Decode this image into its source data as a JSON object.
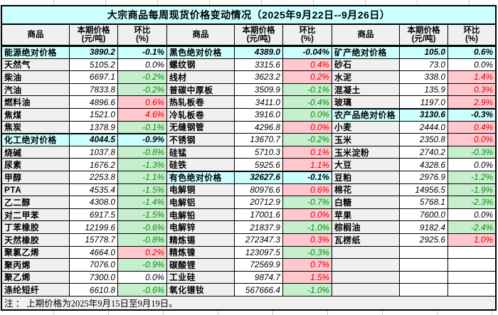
{
  "title": "大宗商品每周现货价格变动情况（2025年9月22日--9月26日）",
  "header": {
    "commodity": "商品",
    "price_l1": "本期价格",
    "price_l2": "(元/吨)",
    "pct_l1": "环比",
    "pct_l2": "(%)"
  },
  "footnote": "注 ： 上期价格为2025年9月15日至9月19日。",
  "colors": {
    "section_bg": "#ccffff",
    "title_bg": "#ccffff",
    "up_bg": "#ffc7ce",
    "up_text": "#dd0000",
    "down_bg": "#c6efce",
    "down_text": "#0b8a0b",
    "name_bg": "#f0f0f0",
    "border": "#000000"
  },
  "groups": [
    {
      "rows": [
        {
          "n": "能源绝对价格",
          "p": "3890.2",
          "c": "-0.1%",
          "s": "sec"
        },
        {
          "n": "天然气",
          "p": "5105.2",
          "c": "0.0%",
          "s": "flat"
        },
        {
          "n": "柴油",
          "p": "6697.1",
          "c": "-0.2%",
          "s": "down"
        },
        {
          "n": "汽油",
          "p": "7833.8",
          "c": "-0.2%",
          "s": "down"
        },
        {
          "n": "燃料油",
          "p": "4896.6",
          "c": "0.6%",
          "s": "up"
        },
        {
          "n": "焦煤",
          "p": "1521.0",
          "c": "4.6%",
          "s": "up"
        },
        {
          "n": "焦炭",
          "p": "1378.9",
          "c": "-0.1%",
          "s": "down"
        },
        {
          "n": "化工绝对价格",
          "p": "4044.5",
          "c": "-0.9%",
          "s": "sec"
        },
        {
          "n": "烧碱",
          "p": "1037.8",
          "c": "-0.8%",
          "s": "down"
        },
        {
          "n": "尿素",
          "p": "1676.2",
          "c": "-1.3%",
          "s": "down"
        },
        {
          "n": "甲醇",
          "p": "2253.8",
          "c": "-1.1%",
          "s": "down"
        },
        {
          "n": "PTA",
          "p": "4535.4",
          "c": "-1.5%",
          "s": "down"
        },
        {
          "n": "乙二醇",
          "p": "4308.0",
          "c": "-1.4%",
          "s": "down"
        },
        {
          "n": "对二甲苯",
          "p": "6917.5",
          "c": "-1.5%",
          "s": "down"
        },
        {
          "n": "丁苯橡胶",
          "p": "12199.6",
          "c": "-0.6%",
          "s": "down"
        },
        {
          "n": "天然橡胶",
          "p": "15778.7",
          "c": "-0.8%",
          "s": "down"
        },
        {
          "n": "聚氯乙烯",
          "p": "4664.0",
          "c": "0.2%",
          "s": "up"
        },
        {
          "n": "聚丙烯",
          "p": "7076.0",
          "c": "-0.9%",
          "s": "down"
        },
        {
          "n": "聚乙烯",
          "p": "7300.0",
          "c": "0.0%",
          "s": "flat"
        },
        {
          "n": "涤纶短纤",
          "p": "6610.8",
          "c": "-0.6%",
          "s": "down"
        }
      ]
    },
    {
      "rows": [
        {
          "n": "黑色绝对价格",
          "p": "4389.0",
          "c": "-0.04%",
          "s": "sec"
        },
        {
          "n": "螺纹钢",
          "p": "3315.6",
          "c": "0.4%",
          "s": "up"
        },
        {
          "n": "线材",
          "p": "3623.2",
          "c": "0.2%",
          "s": "up"
        },
        {
          "n": "普碳中厚板",
          "p": "3509.9",
          "c": "-0.1%",
          "s": "down"
        },
        {
          "n": "热轧板卷",
          "p": "3411.0",
          "c": "-0.4%",
          "s": "down"
        },
        {
          "n": "冷轧板卷",
          "p": "3916.0",
          "c": "0.0%",
          "s": "down"
        },
        {
          "n": "无缝钢管",
          "p": "4296.8",
          "c": "0.0%",
          "s": "up"
        },
        {
          "n": "不锈钢",
          "p": "13670.7",
          "c": "-0.2%",
          "s": "down"
        },
        {
          "n": "硅锰",
          "p": "5710.3",
          "c": "0.1%",
          "s": "up"
        },
        {
          "n": "硅铁",
          "p": "5925.6",
          "c": "1.1%",
          "s": "up"
        },
        {
          "n": "有色绝对价格",
          "p": "32627.6",
          "c": "-0.1%",
          "s": "sec"
        },
        {
          "n": "电解铜",
          "p": "80976.6",
          "c": "0.6%",
          "s": "up"
        },
        {
          "n": "电解铝",
          "p": "20712.9",
          "c": "-0.7%",
          "s": "down"
        },
        {
          "n": "电解铅",
          "p": "17001.6",
          "c": "0.0%",
          "s": "up"
        },
        {
          "n": "电解锌",
          "p": "21837.9",
          "c": "-1.0%",
          "s": "down"
        },
        {
          "n": "精炼锡",
          "p": "272347.3",
          "c": "0.3%",
          "s": "up"
        },
        {
          "n": "精炼镍",
          "p": "123097.5",
          "c": "-0.3%",
          "s": "down"
        },
        {
          "n": "碳酸锂",
          "p": "72569.9",
          "c": "0.7%",
          "s": "up"
        },
        {
          "n": "工业硅",
          "p": "9874.7",
          "c": "1.5%",
          "s": "up"
        },
        {
          "n": "氧化镨钕",
          "p": "567666.4",
          "c": "-1.0%",
          "s": "down"
        }
      ]
    },
    {
      "rows": [
        {
          "n": "矿产绝对价格",
          "p": "105.0",
          "c": "0.6%",
          "s": "sec"
        },
        {
          "n": "砂石",
          "p": "73.0",
          "c": "0.0%",
          "s": "flat"
        },
        {
          "n": "水泥",
          "p": "338.0",
          "c": "1.4%",
          "s": "up"
        },
        {
          "n": "混凝土",
          "p": "135.9",
          "c": "0.3%",
          "s": "up"
        },
        {
          "n": "玻璃",
          "p": "1197.0",
          "c": "2.9%",
          "s": "up"
        },
        {
          "n": "农产品绝对价格",
          "p": "3130.6",
          "c": "-0.3%",
          "s": "sec"
        },
        {
          "n": "小麦",
          "p": "2444.0",
          "c": "0.4%",
          "s": "up"
        },
        {
          "n": "玉米",
          "p": "2350.8",
          "c": "0.0%",
          "s": "up"
        },
        {
          "n": "玉米淀粉",
          "p": "2740.2",
          "c": "-0.3%",
          "s": "down"
        },
        {
          "n": "大豆",
          "p": "4328.6",
          "c": "0.0%",
          "s": "flat"
        },
        {
          "n": "豆粕",
          "p": "2976.9",
          "c": "-1.2%",
          "s": "down"
        },
        {
          "n": "棉花",
          "p": "14956.5",
          "c": "-1.9%",
          "s": "down"
        },
        {
          "n": "白糖",
          "p": "5768.1",
          "c": "-2.3%",
          "s": "down"
        },
        {
          "n": "苹果",
          "p": "7600.0",
          "c": "0.0%",
          "s": "flat"
        },
        {
          "n": "棕榈油",
          "p": "9182.4",
          "c": "-2.4%",
          "s": "down"
        },
        {
          "n": "瓦楞纸",
          "p": "2925.6",
          "c": "1.0%",
          "s": "up"
        },
        {
          "n": "",
          "p": "",
          "c": "",
          "s": "empty"
        },
        {
          "n": "",
          "p": "",
          "c": "",
          "s": "empty"
        },
        {
          "n": "",
          "p": "",
          "c": "",
          "s": "empty"
        },
        {
          "n": "",
          "p": "",
          "c": "",
          "s": "empty"
        }
      ]
    }
  ]
}
